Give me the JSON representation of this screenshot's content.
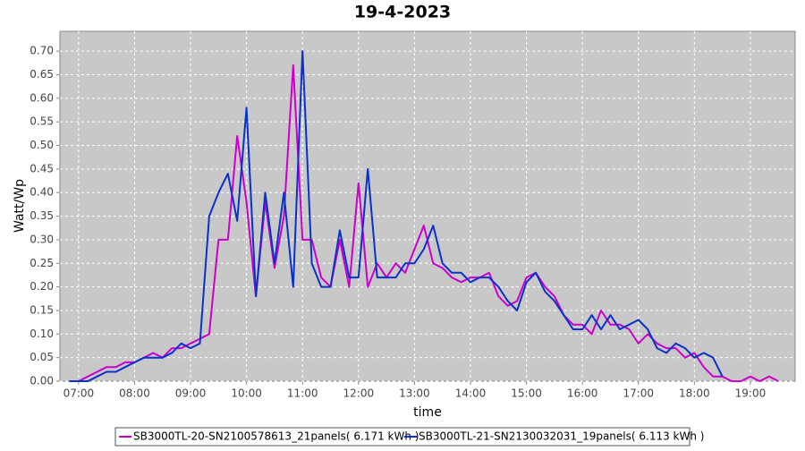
{
  "chart_data": {
    "type": "line",
    "title": "19-4-2023",
    "x_label": "time",
    "y_label": "Watt/Wp",
    "x": [
      "06:50",
      "07:00",
      "07:10",
      "07:20",
      "07:30",
      "07:40",
      "07:50",
      "08:00",
      "08:10",
      "08:20",
      "08:30",
      "08:40",
      "08:50",
      "09:00",
      "09:10",
      "09:20",
      "09:30",
      "09:40",
      "09:50",
      "10:00",
      "10:10",
      "10:20",
      "10:30",
      "10:40",
      "10:50",
      "11:00",
      "11:10",
      "11:20",
      "11:30",
      "11:40",
      "11:50",
      "12:00",
      "12:10",
      "12:20",
      "12:30",
      "12:40",
      "12:50",
      "13:00",
      "13:10",
      "13:20",
      "13:30",
      "13:40",
      "13:50",
      "14:00",
      "14:10",
      "14:20",
      "14:30",
      "14:40",
      "14:50",
      "15:00",
      "15:10",
      "15:20",
      "15:30",
      "15:40",
      "15:50",
      "16:00",
      "16:10",
      "16:20",
      "16:30",
      "16:40",
      "16:50",
      "17:00",
      "17:10",
      "17:20",
      "17:30",
      "17:40",
      "17:50",
      "18:00",
      "18:10",
      "18:20",
      "18:30",
      "18:40",
      "18:50",
      "19:00",
      "19:10",
      "19:20",
      "19:30"
    ],
    "series": [
      {
        "name": "SB3000TL-20-SN2100578613_21panels( 6.171 kWh )",
        "color": "#cc00cc",
        "values": [
          0,
          0,
          0.01,
          0.02,
          0.03,
          0.03,
          0.04,
          0.04,
          0.05,
          0.06,
          0.05,
          0.07,
          0.07,
          0.08,
          0.09,
          0.1,
          0.3,
          0.3,
          0.52,
          0.38,
          0.18,
          0.38,
          0.24,
          0.35,
          0.67,
          0.3,
          0.3,
          0.22,
          0.2,
          0.3,
          0.2,
          0.42,
          0.2,
          0.25,
          0.22,
          0.25,
          0.23,
          0.28,
          0.33,
          0.25,
          0.24,
          0.22,
          0.21,
          0.22,
          0.22,
          0.23,
          0.18,
          0.16,
          0.17,
          0.22,
          0.23,
          0.2,
          0.18,
          0.14,
          0.12,
          0.12,
          0.1,
          0.15,
          0.12,
          0.12,
          0.11,
          0.08,
          0.1,
          0.08,
          0.07,
          0.07,
          0.05,
          0.06,
          0.03,
          0.01,
          0.01,
          0,
          0,
          0.01,
          0,
          0.01,
          0
        ]
      },
      {
        "name": "SB3000TL-21-SN2130032031_19panels( 6.113 kWh )",
        "color": "#0a32c8",
        "values": [
          0,
          0,
          0,
          0.01,
          0.02,
          0.02,
          0.03,
          0.04,
          0.05,
          0.05,
          0.05,
          0.06,
          0.08,
          0.07,
          0.08,
          0.35,
          0.4,
          0.44,
          0.34,
          0.58,
          0.18,
          0.4,
          0.25,
          0.4,
          0.2,
          0.7,
          0.25,
          0.2,
          0.2,
          0.32,
          0.22,
          0.22,
          0.45,
          0.22,
          0.22,
          0.22,
          0.25,
          0.25,
          0.28,
          0.33,
          0.25,
          0.23,
          0.23,
          0.21,
          0.22,
          0.22,
          0.2,
          0.17,
          0.15,
          0.21,
          0.23,
          0.19,
          0.17,
          0.14,
          0.11,
          0.11,
          0.14,
          0.11,
          0.14,
          0.11,
          0.12,
          0.13,
          0.11,
          0.07,
          0.06,
          0.08,
          0.07,
          0.05,
          0.06,
          0.05,
          0.01,
          null,
          null,
          null,
          null,
          null,
          null
        ]
      }
    ],
    "xlim": [
      "06:40",
      "19:48"
    ],
    "xticks": [
      "07:00",
      "08:00",
      "09:00",
      "10:00",
      "11:00",
      "12:00",
      "13:00",
      "14:00",
      "15:00",
      "16:00",
      "17:00",
      "18:00",
      "19:00"
    ],
    "ylim": [
      0,
      0.742
    ],
    "yticks": [
      {
        "value": 0,
        "label": "0.00"
      },
      {
        "value": 0.05,
        "label": "0.05"
      },
      {
        "value": 0.1,
        "label": "0.10"
      },
      {
        "value": 0.15,
        "label": "0.15"
      },
      {
        "value": 0.2,
        "label": "0.20"
      },
      {
        "value": 0.25,
        "label": "0.25"
      },
      {
        "value": 0.3,
        "label": "0.30"
      },
      {
        "value": 0.35,
        "label": "0.35"
      },
      {
        "value": 0.4,
        "label": "0.40"
      },
      {
        "value": 0.45,
        "label": "0.45"
      },
      {
        "value": 0.5,
        "label": "0.50"
      },
      {
        "value": 0.55,
        "label": "0.55"
      },
      {
        "value": 0.6,
        "label": "0.60"
      },
      {
        "value": 0.65,
        "label": "0.65"
      },
      {
        "value": 0.7,
        "label": "0.70"
      }
    ],
    "grid": true,
    "legend": "bottom"
  }
}
